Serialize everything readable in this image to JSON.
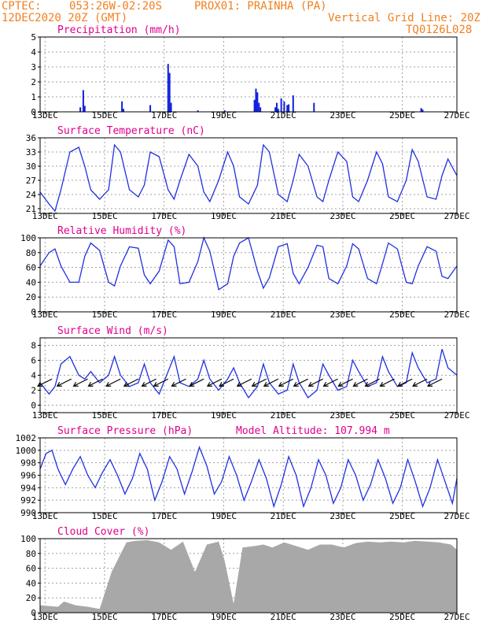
{
  "header": {
    "source": "CPTEC:",
    "coords": "053:26W-02:20S",
    "station": "PROX01: PRAINHA (PA)",
    "date": "12DEC2020 20Z (GMT)",
    "grid_line": "Vertical Grid Line: 20Z",
    "code": "TQ0126L028"
  },
  "colors": {
    "header": "#f08020",
    "title": "#e0008c",
    "line": "#2030e0",
    "bar": "#1020e0",
    "cloud": "#a8a8a8",
    "grid": "#a0a0a0"
  },
  "x_ticks": [
    "13DEC",
    "15DEC",
    "17DEC",
    "19DEC",
    "21DEC",
    "23DEC",
    "25DEC",
    "27DEC"
  ],
  "chart_data": [
    {
      "id": "precip",
      "type": "bar",
      "title": "Precipitation (mm/h)",
      "ylim": [
        0,
        5
      ],
      "yticks": [
        0,
        1,
        2,
        3,
        4,
        5
      ],
      "xunit": "day offset from 12DEC2020 20Z",
      "x": [
        1.35,
        1.45,
        1.5,
        2.75,
        2.8,
        3.7,
        4.3,
        4.35,
        4.4,
        5.3,
        6.2,
        7.2,
        7.25,
        7.3,
        7.35,
        7.4,
        7.9,
        7.95,
        8.0,
        8.1,
        8.2,
        8.3,
        8.35,
        8.5,
        9.2,
        12.8,
        12.85
      ],
      "values": [
        0.3,
        1.45,
        0.4,
        0.7,
        0.2,
        0.45,
        3.2,
        2.6,
        0.6,
        0.1,
        0.1,
        0.8,
        1.55,
        1.3,
        0.6,
        0.3,
        0.3,
        0.6,
        0.2,
        0.9,
        0.7,
        0.45,
        0.5,
        1.1,
        0.6,
        0.25,
        0.15
      ]
    },
    {
      "id": "temp",
      "type": "line",
      "title": "Surface Temperature (nC)",
      "ylim": [
        20,
        36
      ],
      "yticks": [
        21,
        24,
        27,
        30,
        33,
        36
      ],
      "x": [
        0,
        0.3,
        0.5,
        0.7,
        1.0,
        1.3,
        1.5,
        1.7,
        2.0,
        2.3,
        2.5,
        2.7,
        3.0,
        3.3,
        3.5,
        3.7,
        4.0,
        4.3,
        4.5,
        4.7,
        5.0,
        5.3,
        5.5,
        5.7,
        6.0,
        6.3,
        6.5,
        6.7,
        7.0,
        7.3,
        7.5,
        7.7,
        8.0,
        8.3,
        8.5,
        8.7,
        9.0,
        9.3,
        9.5,
        9.7,
        10.0,
        10.3,
        10.5,
        10.7,
        11.0,
        11.3,
        11.5,
        11.7,
        12.0,
        12.3,
        12.5,
        12.7,
        13.0,
        13.3,
        13.5,
        13.7,
        14.0
      ],
      "values": [
        24.5,
        22,
        20.5,
        25,
        33,
        34,
        30,
        25,
        23,
        25,
        34.5,
        33,
        25,
        23.5,
        26,
        33,
        32,
        25,
        23,
        27,
        32.5,
        30,
        24.5,
        22.5,
        27,
        33,
        30,
        23.5,
        22,
        26,
        34.5,
        33,
        24,
        22.5,
        27,
        32.5,
        30,
        23.5,
        22.5,
        27,
        33,
        31,
        23.5,
        22.5,
        27,
        33,
        30.5,
        23.5,
        22.5,
        27,
        33.5,
        31,
        23.5,
        23,
        28,
        31.5,
        28
      ]
    },
    {
      "id": "rh",
      "type": "line",
      "title": "Relative Humidity (%)",
      "ylim": [
        0,
        100
      ],
      "yticks": [
        0,
        20,
        40,
        60,
        80,
        100
      ],
      "x": [
        0,
        0.3,
        0.5,
        0.7,
        1.0,
        1.3,
        1.5,
        1.7,
        2.0,
        2.3,
        2.5,
        2.7,
        3.0,
        3.3,
        3.5,
        3.7,
        4.0,
        4.3,
        4.5,
        4.7,
        5.0,
        5.3,
        5.5,
        5.7,
        6.0,
        6.3,
        6.5,
        6.7,
        7.0,
        7.3,
        7.5,
        7.7,
        8.0,
        8.3,
        8.5,
        8.7,
        9.0,
        9.3,
        9.5,
        9.7,
        10.0,
        10.3,
        10.5,
        10.7,
        11.0,
        11.3,
        11.5,
        11.7,
        12.0,
        12.3,
        12.5,
        12.7,
        13.0,
        13.3,
        13.5,
        13.7,
        14.0
      ],
      "values": [
        62,
        80,
        85,
        62,
        40,
        40,
        75,
        93,
        83,
        40,
        35,
        62,
        88,
        86,
        50,
        38,
        55,
        97,
        88,
        38,
        40,
        68,
        100,
        82,
        30,
        38,
        75,
        93,
        100,
        55,
        32,
        46,
        88,
        92,
        52,
        38,
        60,
        90,
        88,
        45,
        38,
        62,
        92,
        85,
        45,
        38,
        65,
        93,
        85,
        40,
        38,
        62,
        88,
        82,
        48,
        45,
        62
      ]
    },
    {
      "id": "wind",
      "type": "line",
      "title": "Surface Wind (m/s)",
      "ylim": [
        -1,
        9
      ],
      "yticks": [
        0,
        2,
        4,
        6,
        8
      ],
      "x": [
        0,
        0.3,
        0.5,
        0.7,
        1.0,
        1.3,
        1.5,
        1.7,
        2.0,
        2.3,
        2.5,
        2.7,
        3.0,
        3.3,
        3.5,
        3.7,
        4.0,
        4.3,
        4.5,
        4.7,
        5.0,
        5.3,
        5.5,
        5.7,
        6.0,
        6.3,
        6.5,
        6.7,
        7.0,
        7.3,
        7.5,
        7.7,
        8.0,
        8.3,
        8.5,
        8.7,
        9.0,
        9.3,
        9.5,
        9.7,
        10.0,
        10.3,
        10.5,
        10.7,
        11.0,
        11.3,
        11.5,
        11.7,
        12.0,
        12.3,
        12.5,
        12.7,
        13.0,
        13.3,
        13.5,
        13.7,
        14.0
      ],
      "values": [
        3.0,
        1.5,
        2.5,
        5.5,
        6.5,
        4.0,
        3.5,
        4.5,
        3.0,
        4.0,
        6.5,
        4.0,
        2.5,
        3.0,
        5.5,
        3.0,
        1.5,
        4.5,
        6.5,
        3.0,
        2.5,
        3.5,
        6.0,
        3.5,
        2.0,
        3.5,
        5.0,
        3.0,
        1.0,
        2.5,
        5.5,
        3.0,
        1.5,
        2.0,
        5.5,
        3.0,
        1.0,
        2.0,
        5.5,
        4.0,
        2.0,
        2.5,
        6.0,
        4.5,
        2.5,
        3.0,
        6.5,
        4.5,
        2.5,
        3.0,
        7.0,
        5.0,
        3.0,
        3.5,
        7.5,
        5.0,
        4.0
      ],
      "arrow_days": [
        0.4,
        1.05,
        1.6,
        2.1,
        2.7,
        3.3,
        3.9,
        4.3,
        4.9,
        5.5,
        6.1,
        6.5,
        7.1,
        7.6,
        8.0,
        8.5,
        9.0,
        9.5,
        10.0,
        10.5,
        11.0,
        11.4,
        11.9,
        12.5,
        13.0,
        13.5
      ]
    },
    {
      "id": "pressure",
      "type": "line",
      "title": "Surface Pressure (hPa)",
      "annotation": "Model Altitude: 107.994 m",
      "ylim": [
        990,
        1002
      ],
      "yticks": [
        990,
        992,
        994,
        996,
        998,
        1000,
        1002
      ],
      "x": [
        0,
        0.2,
        0.4,
        0.6,
        0.85,
        1.1,
        1.35,
        1.6,
        1.85,
        2.1,
        2.35,
        2.6,
        2.85,
        3.1,
        3.35,
        3.6,
        3.85,
        4.1,
        4.35,
        4.6,
        4.85,
        5.1,
        5.35,
        5.6,
        5.85,
        6.1,
        6.35,
        6.6,
        6.85,
        7.1,
        7.35,
        7.6,
        7.85,
        8.1,
        8.35,
        8.6,
        8.85,
        9.1,
        9.35,
        9.6,
        9.85,
        10.1,
        10.35,
        10.6,
        10.85,
        11.1,
        11.35,
        11.6,
        11.85,
        12.1,
        12.35,
        12.6,
        12.85,
        13.1,
        13.35,
        13.6,
        13.85,
        14.0
      ],
      "values": [
        997,
        999.5,
        1000,
        997,
        994.5,
        997,
        999,
        996,
        994,
        996.5,
        998.5,
        996,
        993,
        995.5,
        999.5,
        997,
        992,
        995,
        999,
        997,
        993,
        996.5,
        1000.5,
        997.5,
        993,
        995,
        999,
        996,
        992,
        995,
        998.5,
        995.5,
        991,
        994.5,
        999,
        996,
        991,
        994,
        998.5,
        996,
        991.5,
        994,
        998.5,
        996,
        992,
        994.5,
        998.5,
        995.5,
        991.5,
        994,
        998.5,
        995,
        991,
        994,
        998.5,
        995,
        991.5,
        995.5
      ]
    },
    {
      "id": "cloud",
      "type": "area",
      "title": "Cloud Cover (%)",
      "ylim": [
        0,
        100
      ],
      "yticks": [
        0,
        20,
        40,
        60,
        80,
        100
      ],
      "x": [
        0,
        0.6,
        0.8,
        1.2,
        1.6,
        2.0,
        2.4,
        2.9,
        3.2,
        3.6,
        4.0,
        4.4,
        4.8,
        5.2,
        5.6,
        6.0,
        6.2,
        6.5,
        6.8,
        7.2,
        7.5,
        7.8,
        8.2,
        8.6,
        9.0,
        9.4,
        9.8,
        10.2,
        10.6,
        11.0,
        11.4,
        11.8,
        12.2,
        12.6,
        13.0,
        13.4,
        13.8,
        14.0
      ],
      "values": [
        10,
        8,
        15,
        10,
        8,
        5,
        55,
        95,
        97,
        98,
        95,
        85,
        96,
        55,
        92,
        96,
        70,
        12,
        88,
        90,
        92,
        88,
        95,
        90,
        85,
        92,
        92,
        88,
        94,
        96,
        95,
        96,
        95,
        97,
        96,
        95,
        92,
        85
      ]
    }
  ]
}
